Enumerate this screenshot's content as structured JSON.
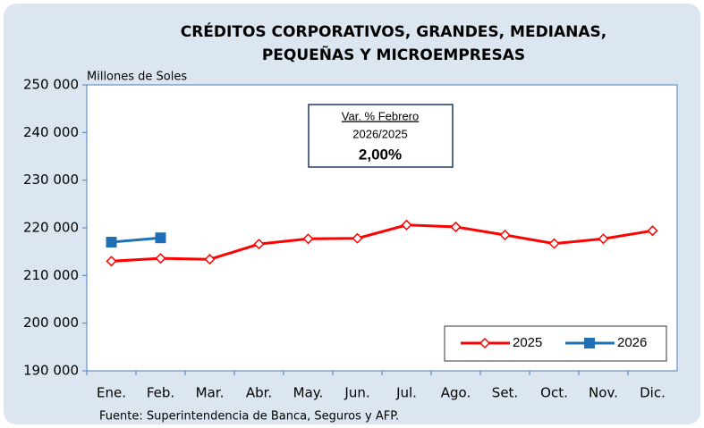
{
  "chart_data": {
    "type": "line",
    "title": [
      "CRÉDITOS CORPORATIVOS, GRANDES, MEDIANAS,",
      "PEQUEÑAS Y MICROEMPRESAS"
    ],
    "y_label": "Millones de Soles",
    "source": "Fuente: Superintendencia de Banca, Seguros y AFP.",
    "annotation": [
      "Var. % Febrero",
      "2026/2025",
      "2,00%"
    ],
    "categories": [
      "Ene.",
      "Feb.",
      "Mar.",
      "Abr.",
      "May.",
      "Jun.",
      "Jul.",
      "Ago.",
      "Set.",
      "Oct.",
      "Nov.",
      "Dic."
    ],
    "series": [
      {
        "name": "2025",
        "color": "#ff0000",
        "marker": "diamond",
        "values": [
          213000,
          213600,
          213400,
          216600,
          217700,
          217800,
          220600,
          220200,
          218500,
          216700,
          217700,
          219400
        ]
      },
      {
        "name": "2026",
        "color": "#1f6fb5",
        "marker": "square",
        "values": [
          217000,
          217900,
          null,
          null,
          null,
          null,
          null,
          null,
          null,
          null,
          null,
          null
        ]
      }
    ],
    "ylim": [
      190000,
      250000
    ],
    "yticks": [
      {
        "value": 190000,
        "label": "190 000"
      },
      {
        "value": 200000,
        "label": "200 000"
      },
      {
        "value": 210000,
        "label": "210 000"
      },
      {
        "value": 220000,
        "label": "220 000"
      },
      {
        "value": 230000,
        "label": "230 000"
      },
      {
        "value": 240000,
        "label": "240 000"
      },
      {
        "value": 250000,
        "label": "250 000"
      }
    ],
    "legend": "bottom-right"
  }
}
